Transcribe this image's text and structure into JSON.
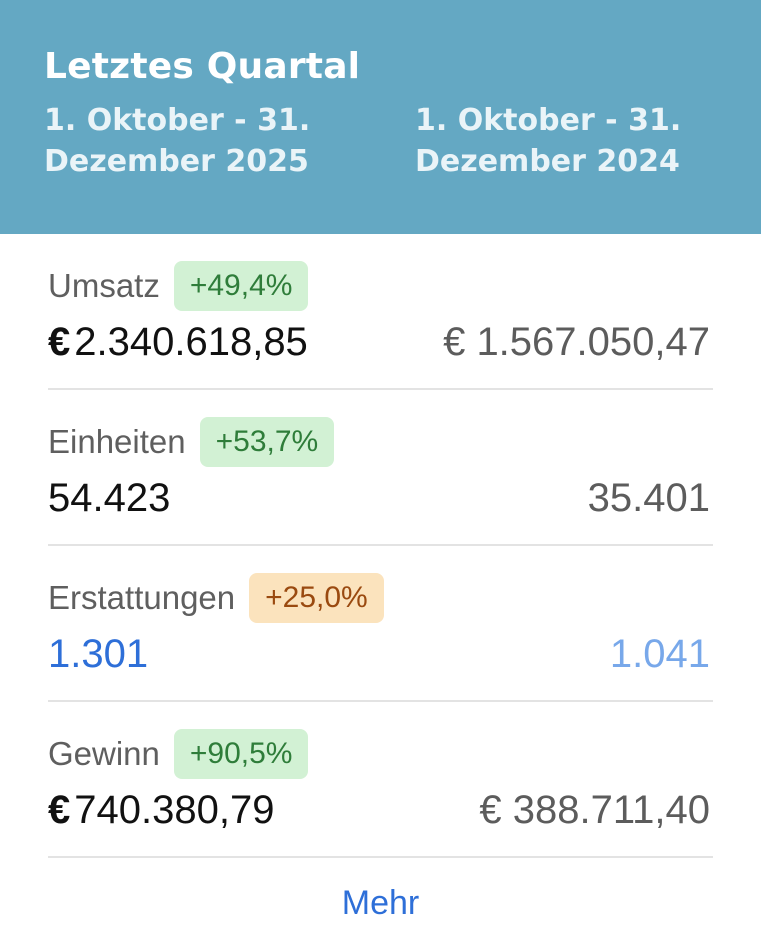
{
  "header": {
    "title": "Letztes Quartal",
    "current_period": "1. Oktober - 31. Dezember 2025",
    "prior_period": "1. Oktober - 31. Dezember 2024",
    "background_color": "#64a8c3"
  },
  "metrics": [
    {
      "label": "Umsatz",
      "change": "+49,4%",
      "change_tone": "positive",
      "current_currency": "€",
      "current_value": "2.340.618,85",
      "prior_currency": "€",
      "prior_value": "1.567.050,47"
    },
    {
      "label": "Einheiten",
      "change": "+53,7%",
      "change_tone": "positive",
      "current_value": "54.423",
      "prior_value": "35.401"
    },
    {
      "label": "Erstattungen",
      "change": "+25,0%",
      "change_tone": "warning",
      "current_value": "1.301",
      "prior_value": "1.041"
    },
    {
      "label": "Gewinn",
      "change": "+90,5%",
      "change_tone": "positive",
      "current_currency": "€",
      "current_value": "740.380,79",
      "prior_currency": "€",
      "prior_value": "388.711,40"
    }
  ],
  "footer": {
    "more_label": "Mehr"
  },
  "colors": {
    "positive_badge_bg": "#d2f1d4",
    "positive_badge_text": "#2f7d3a",
    "warning_badge_bg": "#fbe3bd",
    "warning_badge_text": "#9a4a10",
    "link": "#2e6fd8"
  }
}
